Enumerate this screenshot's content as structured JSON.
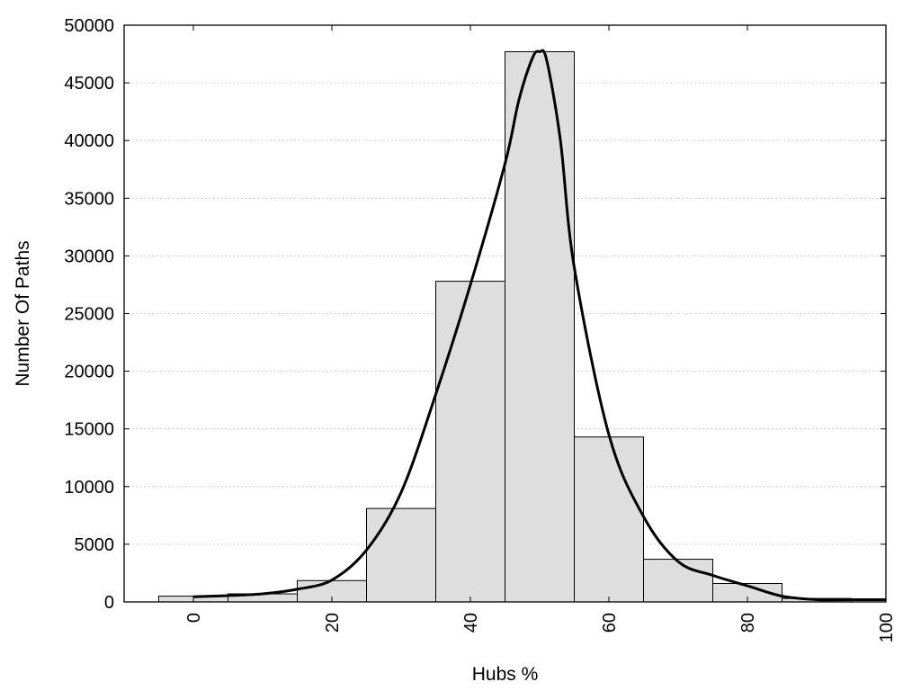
{
  "chart_data": {
    "type": "bar",
    "title": "",
    "xlabel": "Hubs %",
    "ylabel": "Number Of Paths",
    "xlim": [
      -10,
      100
    ],
    "ylim": [
      0,
      50000
    ],
    "xticks": [
      "0",
      "20",
      "40",
      "60",
      "80",
      "100"
    ],
    "yticks": [
      "0",
      "5000",
      "10000",
      "15000",
      "20000",
      "25000",
      "30000",
      "35000",
      "40000",
      "45000",
      "50000"
    ],
    "grid": "horizontal dotted",
    "bin_width": 10,
    "bins": [
      {
        "center": 0,
        "value": 500
      },
      {
        "center": 10,
        "value": 700
      },
      {
        "center": 20,
        "value": 1850
      },
      {
        "center": 30,
        "value": 8100
      },
      {
        "center": 40,
        "value": 27800
      },
      {
        "center": 50,
        "value": 47700
      },
      {
        "center": 60,
        "value": 14300
      },
      {
        "center": 70,
        "value": 3700
      },
      {
        "center": 80,
        "value": 1600
      },
      {
        "center": 90,
        "value": 300
      },
      {
        "center": 100,
        "value": 200
      }
    ],
    "curve": {
      "x": [
        0,
        5,
        10,
        15,
        20,
        25,
        30,
        35,
        40,
        45,
        47,
        49,
        50,
        51,
        53,
        55,
        60,
        65,
        70,
        75,
        80,
        85,
        90,
        95,
        100
      ],
      "y": [
        450,
        550,
        700,
        1100,
        1900,
        4500,
        9500,
        18000,
        27500,
        38000,
        43500,
        47200,
        47700,
        47000,
        40000,
        29000,
        14500,
        7400,
        3500,
        2300,
        1400,
        500,
        200,
        200,
        200
      ]
    },
    "colors": {
      "bar_fill": "#dedede",
      "bar_stroke": "#000000",
      "curve": "#000000",
      "grid": "#b3b3b3"
    }
  }
}
